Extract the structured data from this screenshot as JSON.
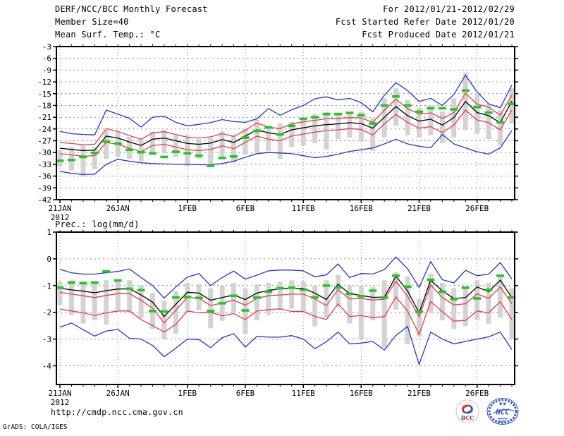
{
  "header": {
    "left": [
      "DERF/NCC/BCC Monthly Forecast",
      "Member Size=40",
      "Mean Surf. Temp.: °C"
    ],
    "right": [
      "For 2012/01/21-2012/02/29",
      "Fcst Started Refer Date 2012/01/20",
      "Fcst Produced Date 2012/01/21"
    ]
  },
  "footer": {
    "url": "http://cmdp.ncc.cma.gov.cn",
    "credit": "GrADS: COLA/IGES"
  },
  "logos": {
    "bcc_label": "BCC",
    "ncc_label": "NCC"
  },
  "palette": {
    "blue": "#2036d4",
    "red": "#ee3a4c",
    "black": "#000000",
    "green": "#22c822",
    "bar": "#d3d3d3",
    "grid": "#8c8c8c",
    "logo_blue": "#2a50c8",
    "logo_red": "#c03028",
    "bcc_text_red": "#9a1f24"
  },
  "chart_data": [
    {
      "type": "line",
      "title": "Mean Surf. Temp.: °C",
      "xlabel": "",
      "ylabel": "°C",
      "x_start": "2012/01/21",
      "x_end": "2012/02/29",
      "n_days": 40,
      "grid": true,
      "legend": "none",
      "ylim": [
        -42,
        -3
      ],
      "y_ticks": [
        -3,
        -6,
        -9,
        -12,
        -15,
        -18,
        -21,
        -24,
        -27,
        -30,
        -33,
        -36,
        -39,
        -42
      ],
      "x_ticks": [
        {
          "day": 0,
          "label": "21JAN",
          "sublabel": "2012"
        },
        {
          "day": 5,
          "label": "26JAN"
        },
        {
          "day": 11,
          "label": "1FEB"
        },
        {
          "day": 16,
          "label": "6FEB"
        },
        {
          "day": 21,
          "label": "11FEB"
        },
        {
          "day": 26,
          "label": "16FEB"
        },
        {
          "day": 31,
          "label": "21FEB"
        },
        {
          "day": 36,
          "label": "26FEB"
        }
      ],
      "series": [
        {
          "name": "ensemble-max",
          "color": "blue",
          "values": [
            -24.6,
            -25.2,
            -25.4,
            -25.5,
            -19.2,
            -20.2,
            -21.3,
            -23.5,
            -21.0,
            -20.7,
            -22.3,
            -23.2,
            -22.8,
            -22.4,
            -21.6,
            -22.1,
            -22.3,
            -21.4,
            -18.8,
            -20.5,
            -19.1,
            -18.0,
            -16.3,
            -15.8,
            -16.6,
            -16.2,
            -17.3,
            -19.6,
            -15.4,
            -12.2,
            -14.2,
            -17.0,
            -16.2,
            -18.0,
            -15.2,
            -10.3,
            -14.6,
            -17.6,
            -18.6,
            -12.8
          ]
        },
        {
          "name": "ensemble-min",
          "color": "blue",
          "values": [
            -34.8,
            -35.3,
            -35.6,
            -35.5,
            -33.0,
            -31.7,
            -32.2,
            -32.6,
            -32.8,
            -32.9,
            -33.0,
            -33.0,
            -33.1,
            -33.1,
            -32.8,
            -32.2,
            -31.2,
            -30.3,
            -30.0,
            -30.1,
            -30.3,
            -30.8,
            -31.3,
            -31.0,
            -30.4,
            -29.7,
            -29.3,
            -28.8,
            -27.8,
            -26.6,
            -27.8,
            -28.4,
            -28.8,
            -25.4,
            -27.8,
            -28.8,
            -29.8,
            -30.4,
            -28.8,
            -24.4
          ]
        },
        {
          "name": "upper-spread",
          "color": "red",
          "values": [
            -27.4,
            -27.7,
            -28.0,
            -27.9,
            -23.9,
            -24.6,
            -25.7,
            -26.6,
            -25.0,
            -24.7,
            -25.4,
            -26.1,
            -26.3,
            -26.0,
            -25.2,
            -25.9,
            -24.3,
            -22.5,
            -23.5,
            -23.9,
            -22.7,
            -22.2,
            -21.8,
            -21.4,
            -21.3,
            -21.1,
            -21.2,
            -22.3,
            -19.2,
            -16.4,
            -18.8,
            -20.2,
            -19.9,
            -21.3,
            -19.8,
            -14.9,
            -17.7,
            -18.4,
            -20.5,
            -15.4
          ]
        },
        {
          "name": "lower-spread",
          "color": "red",
          "values": [
            -30.3,
            -30.6,
            -30.9,
            -30.8,
            -27.4,
            -27.9,
            -28.9,
            -29.8,
            -28.2,
            -27.9,
            -28.6,
            -29.3,
            -29.5,
            -29.2,
            -28.3,
            -29.0,
            -27.4,
            -25.8,
            -26.6,
            -27.0,
            -25.8,
            -25.3,
            -24.8,
            -24.4,
            -24.2,
            -23.9,
            -24.1,
            -25.5,
            -22.7,
            -20.3,
            -22.3,
            -23.8,
            -23.4,
            -24.9,
            -23.0,
            -19.2,
            -21.7,
            -22.4,
            -24.2,
            -19.2
          ]
        },
        {
          "name": "ensemble-mean",
          "color": "black",
          "values": [
            -28.9,
            -29.2,
            -29.5,
            -29.4,
            -25.8,
            -26.3,
            -27.3,
            -28.2,
            -26.6,
            -26.3,
            -27.0,
            -27.7,
            -27.9,
            -27.6,
            -26.7,
            -27.4,
            -25.8,
            -24.2,
            -25.0,
            -25.4,
            -24.2,
            -23.7,
            -23.2,
            -22.9,
            -22.7,
            -22.4,
            -22.6,
            -23.8,
            -21.0,
            -18.3,
            -20.6,
            -22.0,
            -21.5,
            -23.0,
            -21.1,
            -17.0,
            -19.8,
            -20.6,
            -22.4,
            -16.9
          ]
        },
        {
          "name": "observation",
          "color": "green",
          "style": "dashes",
          "values": [
            -32.1,
            -31.9,
            -31.1,
            -30.1,
            -27.2,
            -27.7,
            -29.3,
            -29.9,
            -30.2,
            -31.1,
            -29.8,
            -30.2,
            -30.8,
            -33.4,
            -31.4,
            -31.0,
            -26.2,
            -24.5,
            -23.6,
            -25.4,
            -23.2,
            -21.4,
            -21.0,
            -20.2,
            -20.2,
            -19.9,
            -20.5,
            -22.6,
            -18.0,
            -15.7,
            -18.0,
            -19.6,
            -18.7,
            -18.7,
            -19.0,
            -14.2,
            -18.4,
            -19.8,
            -22.3,
            -17.6
          ]
        }
      ],
      "bars": [
        [
          -33.6,
          -29.4
        ],
        [
          -34.6,
          -28.6
        ],
        [
          -36.2,
          -28.2
        ],
        [
          -34.2,
          -28.6
        ],
        [
          -31.6,
          -24.2
        ],
        [
          -31.0,
          -24.6
        ],
        [
          -31.6,
          -26.0
        ],
        [
          -32.2,
          -26.6
        ],
        [
          -30.6,
          -24.6
        ],
        [
          -30.2,
          -24.2
        ],
        [
          -31.2,
          -25.6
        ],
        [
          -33.6,
          -25.6
        ],
        [
          -31.6,
          -26.6
        ],
        [
          -33.6,
          -26.2
        ],
        [
          -31.2,
          -24.6
        ],
        [
          -32.6,
          -25.6
        ],
        [
          -30.6,
          -24.0
        ],
        [
          -30.2,
          -21.6
        ],
        [
          -29.6,
          -23.2
        ],
        [
          -31.6,
          -22.6
        ],
        [
          -28.6,
          -22.2
        ],
        [
          -28.2,
          -21.2
        ],
        [
          -27.6,
          -20.2
        ],
        [
          -29.2,
          -19.6
        ],
        [
          -26.6,
          -20.6
        ],
        [
          -26.2,
          -20.2
        ],
        [
          -27.2,
          -19.6
        ],
        [
          -29.6,
          -21.2
        ],
        [
          -26.2,
          -16.2
        ],
        [
          -23.2,
          -13.6
        ],
        [
          -25.6,
          -16.6
        ],
        [
          -26.2,
          -18.6
        ],
        [
          -25.6,
          -18.2
        ],
        [
          -27.6,
          -19.6
        ],
        [
          -26.2,
          -16.2
        ],
        [
          -24.2,
          -9.6
        ],
        [
          -25.2,
          -15.2
        ],
        [
          -26.6,
          -17.6
        ],
        [
          -28.2,
          -19.2
        ],
        [
          -22.6,
          -13.6
        ]
      ]
    },
    {
      "type": "line",
      "title": "Prec.: log(mm/d)",
      "xlabel": "",
      "ylabel": "log(mm/d)",
      "x_start": "2012/01/21",
      "x_end": "2012/02/29",
      "n_days": 40,
      "grid": true,
      "legend": "none",
      "ylim": [
        -4.7,
        1
      ],
      "y_ticks": [
        1,
        0,
        -1,
        -2,
        -3,
        -4
      ],
      "x_ticks": [
        {
          "day": 0,
          "label": "21JAN",
          "sublabel": "2012"
        },
        {
          "day": 5,
          "label": "26JAN"
        },
        {
          "day": 11,
          "label": "1FEB"
        },
        {
          "day": 16,
          "label": "6FEB"
        },
        {
          "day": 21,
          "label": "11FEB"
        },
        {
          "day": 26,
          "label": "16FEB"
        },
        {
          "day": 31,
          "label": "21FEB"
        },
        {
          "day": 36,
          "label": "26FEB"
        }
      ],
      "series": [
        {
          "name": "ensemble-max",
          "color": "blue",
          "values": [
            -0.39,
            -0.52,
            -0.57,
            -0.57,
            -0.52,
            -0.47,
            -0.38,
            -0.7,
            -1.0,
            -1.47,
            -1.05,
            -0.68,
            -0.55,
            -1.0,
            -0.7,
            -0.46,
            -0.76,
            -0.61,
            -0.45,
            -0.42,
            -0.42,
            -0.45,
            -0.67,
            -0.6,
            -0.19,
            -0.7,
            -0.55,
            -0.57,
            -0.4,
            0.07,
            -0.37,
            -1.07,
            -0.1,
            -0.78,
            -0.9,
            -0.43,
            -0.63,
            -0.57,
            -0.14,
            -0.75
          ]
        },
        {
          "name": "ensemble-min",
          "color": "blue",
          "values": [
            -2.56,
            -2.4,
            -2.65,
            -2.89,
            -2.7,
            -2.64,
            -2.97,
            -3.0,
            -3.24,
            -3.66,
            -3.34,
            -3.0,
            -3.02,
            -3.32,
            -2.95,
            -2.8,
            -3.3,
            -2.9,
            -2.93,
            -2.93,
            -2.87,
            -3.0,
            -3.36,
            -3.1,
            -2.74,
            -3.18,
            -3.15,
            -3.09,
            -3.41,
            -2.86,
            -2.53,
            -3.95,
            -2.74,
            -3.0,
            -3.18,
            -3.09,
            -3.0,
            -2.92,
            -2.74,
            -3.39
          ]
        },
        {
          "name": "upper-spread",
          "color": "red",
          "values": [
            -1.25,
            -1.32,
            -1.38,
            -1.45,
            -1.37,
            -1.3,
            -1.3,
            -1.55,
            -1.85,
            -2.4,
            -1.92,
            -1.44,
            -1.47,
            -1.75,
            -1.65,
            -1.55,
            -1.73,
            -1.48,
            -1.38,
            -1.35,
            -1.32,
            -1.32,
            -1.5,
            -1.75,
            -1.15,
            -1.5,
            -1.48,
            -1.54,
            -1.51,
            -0.84,
            -1.4,
            -2.16,
            -0.98,
            -1.45,
            -1.72,
            -1.68,
            -1.31,
            -1.48,
            -1.05,
            -1.68
          ]
        },
        {
          "name": "lower-spread",
          "color": "red",
          "values": [
            -1.88,
            -1.95,
            -2.02,
            -2.12,
            -2.02,
            -1.95,
            -1.95,
            -2.27,
            -2.5,
            -2.74,
            -2.45,
            -1.95,
            -2.02,
            -2.0,
            -2.13,
            -2.05,
            -2.27,
            -1.95,
            -1.9,
            -1.87,
            -1.97,
            -1.97,
            -2.15,
            -2.27,
            -1.68,
            -2.16,
            -2.12,
            -2.2,
            -2.16,
            -1.42,
            -1.95,
            -2.82,
            -1.6,
            -1.98,
            -2.33,
            -2.3,
            -1.95,
            -2.02,
            -1.6,
            -2.27
          ]
        },
        {
          "name": "ensemble-mean",
          "color": "black",
          "values": [
            -1.1,
            -1.16,
            -1.21,
            -1.27,
            -1.19,
            -1.13,
            -1.12,
            -1.35,
            -1.62,
            -2.16,
            -1.7,
            -1.25,
            -1.28,
            -1.55,
            -1.45,
            -1.35,
            -1.52,
            -1.28,
            -1.18,
            -1.12,
            -1.1,
            -1.1,
            -1.28,
            -1.52,
            -0.95,
            -1.3,
            -1.37,
            -1.44,
            -1.43,
            -0.65,
            -1.2,
            -2.02,
            -0.8,
            -1.2,
            -1.48,
            -1.45,
            -1.05,
            -1.23,
            -0.8,
            -1.45
          ]
        },
        {
          "name": "observation",
          "color": "green",
          "style": "dashes",
          "values": [
            -1.08,
            -0.89,
            -0.91,
            -0.89,
            -0.47,
            -0.81,
            -1.12,
            -1.17,
            -1.95,
            -1.97,
            -1.44,
            -1.43,
            -1.46,
            -1.95,
            -1.66,
            -1.38,
            -1.93,
            -1.45,
            -1.23,
            -1.1,
            -1.08,
            -1.15,
            -1.44,
            -1.0,
            -1.07,
            -1.31,
            -1.4,
            -1.19,
            -1.45,
            -0.63,
            -1.04,
            -1.98,
            -0.78,
            -1.23,
            -1.51,
            -1.08,
            -1.48,
            -1.16,
            -0.63,
            -1.45
          ]
        }
      ],
      "bars": [
        [
          -1.72,
          -0.85
        ],
        [
          -2.1,
          -0.8
        ],
        [
          -2.42,
          -0.85
        ],
        [
          -2.3,
          -0.9
        ],
        [
          -2.45,
          -0.8
        ],
        [
          -1.92,
          -0.85
        ],
        [
          -2.02,
          -0.8
        ],
        [
          -2.22,
          -1.0
        ],
        [
          -2.62,
          -1.28
        ],
        [
          -3.02,
          -1.58
        ],
        [
          -2.8,
          -1.2
        ],
        [
          -2.02,
          -0.9
        ],
        [
          -1.92,
          -0.95
        ],
        [
          -2.6,
          -1.1
        ],
        [
          -2.32,
          -1.0
        ],
        [
          -2.02,
          -0.9
        ],
        [
          -2.8,
          -1.1
        ],
        [
          -2.3,
          -0.95
        ],
        [
          -2.1,
          -0.9
        ],
        [
          -1.92,
          -0.85
        ],
        [
          -1.86,
          -0.8
        ],
        [
          -2.02,
          -0.85
        ],
        [
          -2.52,
          -1.0
        ],
        [
          -2.2,
          -0.8
        ],
        [
          -1.8,
          -0.6
        ],
        [
          -2.42,
          -1.0
        ],
        [
          -3.0,
          -1.0
        ],
        [
          -2.3,
          -1.05
        ],
        [
          -3.32,
          -0.8
        ],
        [
          -1.9,
          -0.5
        ],
        [
          -3.2,
          -0.65
        ],
        [
          -2.9,
          -1.5
        ],
        [
          -2.02,
          -0.55
        ],
        [
          -2.3,
          -0.9
        ],
        [
          -2.62,
          -1.1
        ],
        [
          -2.52,
          -1.05
        ],
        [
          -2.3,
          -0.8
        ],
        [
          -2.42,
          -0.9
        ],
        [
          -2.2,
          -0.6
        ],
        [
          -3.0,
          -1.1
        ]
      ]
    }
  ]
}
